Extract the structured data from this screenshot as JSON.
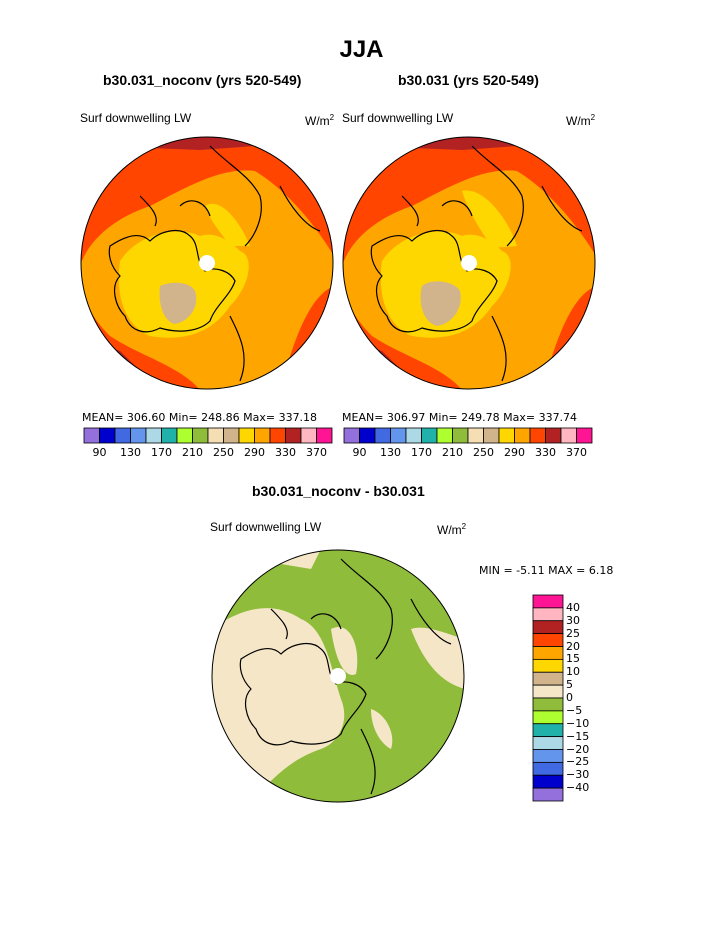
{
  "title": "JJA",
  "panels": [
    {
      "title": "b30.031_noconv (yrs 520-549)",
      "variable": "Surf downwelling LW",
      "units_base": "W/m",
      "units_sup": "2",
      "stats": {
        "mean": "306.60",
        "min": "248.86",
        "max": "337.18"
      },
      "stats_text": "MEAN= 306.60  Min= 248.86  Max= 337.18"
    },
    {
      "title": "b30.031 (yrs 520-549)",
      "variable": "Surf downwelling LW",
      "units_base": "W/m",
      "units_sup": "2",
      "stats": {
        "mean": "306.97",
        "min": "249.78",
        "max": "337.74"
      },
      "stats_text": "MEAN= 306.97  Min= 249.78  Max= 337.74"
    }
  ],
  "abs_colorbar": {
    "colors": [
      "#9370db",
      "#0000cd",
      "#4169e1",
      "#6495ed",
      "#add8e6",
      "#20b2aa",
      "#adff2f",
      "#8fbc3a",
      "#f5deb3",
      "#d2b48c",
      "#ffd700",
      "#ffa500",
      "#ff4500",
      "#b22222",
      "#ffb6c1",
      "#ff1493"
    ],
    "tick_labels": [
      "90",
      "130",
      "170",
      "210",
      "250",
      "290",
      "330",
      "370"
    ]
  },
  "diff_panel": {
    "title": "b30.031_noconv - b30.031",
    "variable": "Surf downwelling LW",
    "units_base": "W/m",
    "units_sup": "2",
    "minmax_text": "MIN =   -5.11  MAX =    6.18",
    "min": "-5.11",
    "max": "6.18"
  },
  "diff_colorbar": {
    "colors_top_to_bottom": [
      "#ff1493",
      "#ffb6c1",
      "#b22222",
      "#ff4500",
      "#ffa500",
      "#ffd700",
      "#d2b48c",
      "#f5e6c8",
      "#8fbc3a",
      "#adff2f",
      "#20b2aa",
      "#add8e6",
      "#6495ed",
      "#4169e1",
      "#0000cd",
      "#9370db"
    ],
    "tick_labels": [
      "40",
      "30",
      "25",
      "20",
      "15",
      "10",
      "5",
      "0",
      "−5",
      "−10",
      "−15",
      "−20",
      "−25",
      "−30",
      "−40"
    ]
  },
  "map_colors": {
    "dark_red": "#b22222",
    "red_orange": "#ff4500",
    "orange": "#ffa500",
    "gold": "#ffd700",
    "tan": "#d2b48c",
    "wheat": "#f5e6c8",
    "green": "#8fbc3a"
  }
}
